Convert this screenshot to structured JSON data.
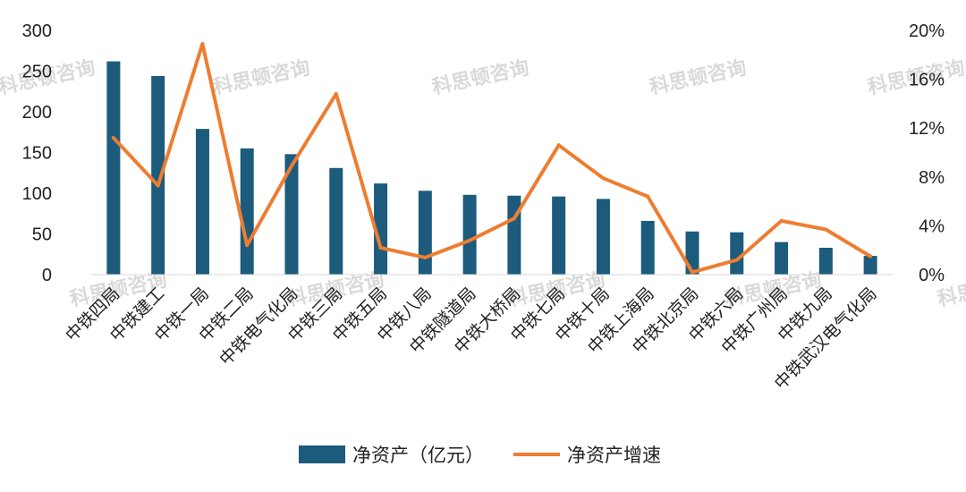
{
  "watermark_text": "科思顿咨询",
  "chart_data": {
    "type": "bar",
    "categories": [
      "中铁四局",
      "中铁建工",
      "中铁一局",
      "中铁二局",
      "中铁电气化局",
      "中铁三局",
      "中铁五局",
      "中铁八局",
      "中铁隧道局",
      "中铁大桥局",
      "中铁七局",
      "中铁十局",
      "中铁上海局",
      "中铁北京局",
      "中铁六局",
      "中铁广州局",
      "中铁九局",
      "中铁武汉电气化局"
    ],
    "series": [
      {
        "name": "净资产（亿元）",
        "type": "bar",
        "axis": "left",
        "color": "#1c5b7c",
        "values": [
          262,
          244,
          179,
          155,
          148,
          131,
          112,
          103,
          98,
          97,
          96,
          93,
          66,
          53,
          52,
          40,
          33,
          23
        ]
      },
      {
        "name": "净资产增速",
        "type": "line",
        "axis": "right",
        "color": "#ed7d31",
        "values": [
          11.2,
          7.3,
          18.9,
          2.4,
          8.9,
          14.8,
          2.2,
          1.4,
          2.8,
          4.6,
          10.6,
          7.9,
          6.4,
          0.2,
          1.2,
          4.4,
          3.7,
          1.5
        ]
      }
    ],
    "left_axis": {
      "ticks": [
        "0",
        "50",
        "100",
        "150",
        "200",
        "250",
        "300"
      ],
      "ylim": [
        0,
        300
      ]
    },
    "right_axis": {
      "ticks": [
        "0%",
        "4%",
        "8%",
        "12%",
        "16%",
        "20%"
      ],
      "ylim": [
        0,
        20
      ]
    },
    "grid": false,
    "legend_position": "bottom"
  }
}
